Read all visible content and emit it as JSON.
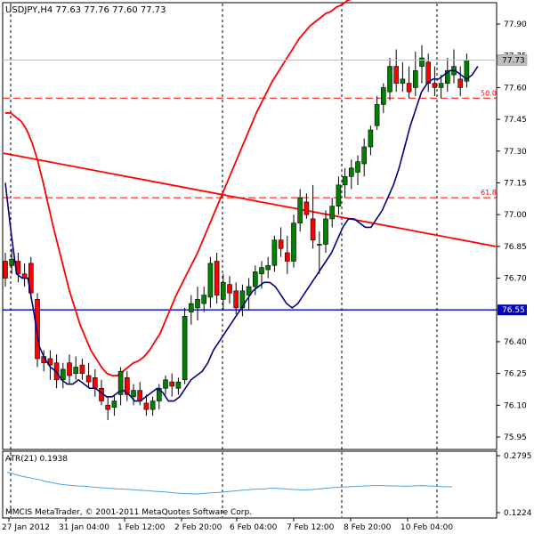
{
  "header": {
    "title": "USDJPY,H4  77.63 77.76 77.60 77.73"
  },
  "footer": {
    "copyright": "MMCIS MetaTrader, © 2001-2011 MetaQuotes Software Corp."
  },
  "chart_data": [
    {
      "type": "candlestick",
      "symbol": "USDJPY",
      "timeframe": "H4",
      "ohlc_label": "77.63 77.76 77.60 77.73",
      "ylim": [
        75.88,
        78.0
      ],
      "y_ticks": [
        "77.90",
        "77.75",
        "77.60",
        "77.45",
        "77.30",
        "77.15",
        "77.00",
        "76.85",
        "76.70",
        "76.55",
        "76.40",
        "76.25",
        "76.10",
        "75.95"
      ],
      "x_ticks": [
        "27 Jan 2012",
        "31 Jan 04:00",
        "1 Feb 12:00",
        "2 Feb 20:00",
        "6 Feb 04:00",
        "7 Feb 12:00",
        "8 Feb 20:00",
        "10 Feb 04:00"
      ],
      "current_price_label": "77.73",
      "colors": {
        "up": "#008000",
        "down": "#ff0000",
        "ma_fast": "#000080",
        "ma_slow": "#ff0000",
        "support": "#0000cc"
      },
      "candles": [
        {
          "o": 76.78,
          "h": 76.82,
          "l": 76.66,
          "c": 76.7
        },
        {
          "o": 76.76,
          "h": 76.84,
          "l": 76.72,
          "c": 76.79
        },
        {
          "o": 76.78,
          "h": 76.82,
          "l": 76.68,
          "c": 76.72
        },
        {
          "o": 76.72,
          "h": 76.77,
          "l": 76.66,
          "c": 76.7
        },
        {
          "o": 76.77,
          "h": 76.8,
          "l": 76.6,
          "c": 76.63
        },
        {
          "o": 76.6,
          "h": 76.63,
          "l": 76.28,
          "c": 76.32
        },
        {
          "o": 76.33,
          "h": 76.36,
          "l": 76.26,
          "c": 76.3
        },
        {
          "o": 76.32,
          "h": 76.36,
          "l": 76.22,
          "c": 76.29
        },
        {
          "o": 76.3,
          "h": 76.34,
          "l": 76.18,
          "c": 76.22
        },
        {
          "o": 76.22,
          "h": 76.3,
          "l": 76.18,
          "c": 76.27
        },
        {
          "o": 76.3,
          "h": 76.34,
          "l": 76.2,
          "c": 76.24
        },
        {
          "o": 76.25,
          "h": 76.33,
          "l": 76.22,
          "c": 76.28
        },
        {
          "o": 76.29,
          "h": 76.32,
          "l": 76.22,
          "c": 76.25
        },
        {
          "o": 76.24,
          "h": 76.3,
          "l": 76.18,
          "c": 76.21
        },
        {
          "o": 76.23,
          "h": 76.27,
          "l": 76.14,
          "c": 76.18
        },
        {
          "o": 76.18,
          "h": 76.22,
          "l": 76.1,
          "c": 76.12
        },
        {
          "o": 76.1,
          "h": 76.14,
          "l": 76.03,
          "c": 76.08
        },
        {
          "o": 76.09,
          "h": 76.15,
          "l": 76.05,
          "c": 76.12
        },
        {
          "o": 76.15,
          "h": 76.28,
          "l": 76.1,
          "c": 76.26
        },
        {
          "o": 76.23,
          "h": 76.26,
          "l": 76.12,
          "c": 76.15
        },
        {
          "o": 76.14,
          "h": 76.2,
          "l": 76.1,
          "c": 76.17
        },
        {
          "o": 76.17,
          "h": 76.21,
          "l": 76.1,
          "c": 76.12
        },
        {
          "o": 76.11,
          "h": 76.15,
          "l": 76.05,
          "c": 76.08
        },
        {
          "o": 76.08,
          "h": 76.14,
          "l": 76.05,
          "c": 76.12
        },
        {
          "o": 76.12,
          "h": 76.2,
          "l": 76.08,
          "c": 76.18
        },
        {
          "o": 76.18,
          "h": 76.24,
          "l": 76.15,
          "c": 76.22
        },
        {
          "o": 76.21,
          "h": 76.25,
          "l": 76.14,
          "c": 76.19
        },
        {
          "o": 76.18,
          "h": 76.23,
          "l": 76.15,
          "c": 76.21
        },
        {
          "o": 76.22,
          "h": 76.56,
          "l": 76.2,
          "c": 76.52
        },
        {
          "o": 76.54,
          "h": 76.62,
          "l": 76.48,
          "c": 76.58
        },
        {
          "o": 76.56,
          "h": 76.66,
          "l": 76.5,
          "c": 76.6
        },
        {
          "o": 76.58,
          "h": 76.66,
          "l": 76.54,
          "c": 76.62
        },
        {
          "o": 76.61,
          "h": 76.8,
          "l": 76.56,
          "c": 76.77
        },
        {
          "o": 76.78,
          "h": 76.82,
          "l": 76.58,
          "c": 76.62
        },
        {
          "o": 76.6,
          "h": 76.72,
          "l": 76.55,
          "c": 76.68
        },
        {
          "o": 76.67,
          "h": 76.71,
          "l": 76.58,
          "c": 76.63
        },
        {
          "o": 76.64,
          "h": 76.68,
          "l": 76.53,
          "c": 76.56
        },
        {
          "o": 76.56,
          "h": 76.67,
          "l": 76.52,
          "c": 76.64
        },
        {
          "o": 76.62,
          "h": 76.7,
          "l": 76.55,
          "c": 76.66
        },
        {
          "o": 76.66,
          "h": 76.76,
          "l": 76.62,
          "c": 76.73
        },
        {
          "o": 76.72,
          "h": 76.78,
          "l": 76.65,
          "c": 76.75
        },
        {
          "o": 76.74,
          "h": 76.8,
          "l": 76.7,
          "c": 76.76
        },
        {
          "o": 76.76,
          "h": 76.9,
          "l": 76.73,
          "c": 76.88
        },
        {
          "o": 76.88,
          "h": 76.94,
          "l": 76.8,
          "c": 76.84
        },
        {
          "o": 76.82,
          "h": 76.9,
          "l": 76.72,
          "c": 76.78
        },
        {
          "o": 76.78,
          "h": 77.0,
          "l": 76.75,
          "c": 76.96
        },
        {
          "o": 76.96,
          "h": 77.12,
          "l": 76.92,
          "c": 77.08
        },
        {
          "o": 77.06,
          "h": 77.1,
          "l": 76.98,
          "c": 77.0
        },
        {
          "o": 76.98,
          "h": 77.14,
          "l": 76.84,
          "c": 76.88
        },
        {
          "o": 76.86,
          "h": 76.92,
          "l": 76.72,
          "c": 76.86
        },
        {
          "o": 76.86,
          "h": 77.02,
          "l": 76.82,
          "c": 76.98
        },
        {
          "o": 76.98,
          "h": 77.08,
          "l": 76.94,
          "c": 77.04
        },
        {
          "o": 77.04,
          "h": 77.18,
          "l": 77.0,
          "c": 77.14
        },
        {
          "o": 77.14,
          "h": 77.22,
          "l": 77.08,
          "c": 77.18
        },
        {
          "o": 77.18,
          "h": 77.26,
          "l": 77.12,
          "c": 77.22
        },
        {
          "o": 77.2,
          "h": 77.28,
          "l": 77.14,
          "c": 77.25
        },
        {
          "o": 77.24,
          "h": 77.36,
          "l": 77.18,
          "c": 77.32
        },
        {
          "o": 77.32,
          "h": 77.42,
          "l": 77.28,
          "c": 77.4
        },
        {
          "o": 77.42,
          "h": 77.56,
          "l": 77.4,
          "c": 77.52
        },
        {
          "o": 77.52,
          "h": 77.62,
          "l": 77.48,
          "c": 77.6
        },
        {
          "o": 77.58,
          "h": 77.74,
          "l": 77.54,
          "c": 77.7
        },
        {
          "o": 77.7,
          "h": 77.78,
          "l": 77.58,
          "c": 77.62
        },
        {
          "o": 77.62,
          "h": 77.72,
          "l": 77.58,
          "c": 77.64
        },
        {
          "o": 77.62,
          "h": 77.7,
          "l": 77.55,
          "c": 77.58
        },
        {
          "o": 77.6,
          "h": 77.77,
          "l": 77.56,
          "c": 77.68
        },
        {
          "o": 77.7,
          "h": 77.8,
          "l": 77.62,
          "c": 77.74
        },
        {
          "o": 77.72,
          "h": 77.76,
          "l": 77.58,
          "c": 77.62
        },
        {
          "o": 77.62,
          "h": 77.7,
          "l": 77.56,
          "c": 77.6
        },
        {
          "o": 77.6,
          "h": 77.66,
          "l": 77.55,
          "c": 77.62
        },
        {
          "o": 77.62,
          "h": 77.74,
          "l": 77.58,
          "c": 77.68
        },
        {
          "o": 77.66,
          "h": 77.78,
          "l": 77.62,
          "c": 77.7
        },
        {
          "o": 77.64,
          "h": 77.7,
          "l": 77.56,
          "c": 77.6
        },
        {
          "o": 77.63,
          "h": 77.76,
          "l": 77.6,
          "c": 77.73
        }
      ],
      "ma_fast": [
        [
          0,
          77.15
        ],
        [
          4,
          76.92
        ],
        [
          8,
          76.72
        ],
        [
          12,
          76.7
        ],
        [
          16,
          76.7
        ],
        [
          20,
          76.55
        ],
        [
          24,
          76.38
        ],
        [
          28,
          76.32
        ],
        [
          32,
          76.28
        ],
        [
          36,
          76.26
        ],
        [
          40,
          76.22
        ],
        [
          44,
          76.2
        ],
        [
          48,
          76.2
        ],
        [
          52,
          76.22
        ],
        [
          56,
          76.2
        ],
        [
          60,
          76.18
        ],
        [
          64,
          76.18
        ],
        [
          68,
          76.16
        ],
        [
          72,
          76.14
        ],
        [
          76,
          76.14
        ],
        [
          80,
          76.16
        ],
        [
          84,
          76.17
        ],
        [
          88,
          76.15
        ],
        [
          92,
          76.12
        ],
        [
          96,
          76.12
        ],
        [
          100,
          76.14
        ],
        [
          104,
          76.16
        ],
        [
          108,
          76.18
        ],
        [
          112,
          76.16
        ],
        [
          116,
          76.12
        ],
        [
          120,
          76.12
        ],
        [
          124,
          76.14
        ],
        [
          128,
          76.18
        ],
        [
          132,
          76.22
        ],
        [
          136,
          76.24
        ],
        [
          140,
          76.26
        ],
        [
          144,
          76.3
        ],
        [
          148,
          76.36
        ],
        [
          152,
          76.4
        ],
        [
          156,
          76.44
        ],
        [
          160,
          76.48
        ],
        [
          164,
          76.52
        ],
        [
          168,
          76.56
        ],
        [
          172,
          76.6
        ],
        [
          176,
          76.64
        ],
        [
          180,
          76.66
        ],
        [
          184,
          76.68
        ],
        [
          188,
          76.68
        ],
        [
          192,
          76.66
        ],
        [
          196,
          76.62
        ],
        [
          200,
          76.58
        ],
        [
          204,
          76.56
        ],
        [
          208,
          76.58
        ],
        [
          212,
          76.62
        ],
        [
          216,
          76.66
        ],
        [
          220,
          76.7
        ],
        [
          224,
          76.74
        ],
        [
          228,
          76.78
        ],
        [
          232,
          76.82
        ],
        [
          236,
          76.88
        ],
        [
          240,
          76.94
        ],
        [
          244,
          76.98
        ],
        [
          248,
          76.98
        ],
        [
          252,
          76.96
        ],
        [
          256,
          76.94
        ],
        [
          260,
          76.94
        ],
        [
          264,
          76.98
        ],
        [
          268,
          77.02
        ],
        [
          272,
          77.08
        ],
        [
          276,
          77.14
        ],
        [
          280,
          77.22
        ],
        [
          284,
          77.32
        ],
        [
          288,
          77.42
        ],
        [
          292,
          77.5
        ],
        [
          296,
          77.58
        ],
        [
          300,
          77.62
        ],
        [
          304,
          77.64
        ],
        [
          308,
          77.64
        ],
        [
          312,
          77.66
        ],
        [
          316,
          77.68
        ],
        [
          320,
          77.68
        ],
        [
          324,
          77.66
        ],
        [
          328,
          77.64
        ],
        [
          332,
          77.66
        ],
        [
          336,
          77.7
        ]
      ],
      "ma_slow": [
        [
          0,
          77.48
        ],
        [
          6,
          77.48
        ],
        [
          12,
          77.46
        ],
        [
          18,
          77.44
        ],
        [
          24,
          77.4
        ],
        [
          30,
          77.34
        ],
        [
          36,
          77.26
        ],
        [
          42,
          77.16
        ],
        [
          48,
          77.05
        ],
        [
          54,
          76.94
        ],
        [
          60,
          76.84
        ],
        [
          66,
          76.74
        ],
        [
          72,
          76.64
        ],
        [
          78,
          76.56
        ],
        [
          84,
          76.48
        ],
        [
          90,
          76.42
        ],
        [
          96,
          76.36
        ],
        [
          102,
          76.32
        ],
        [
          108,
          76.28
        ],
        [
          114,
          76.25
        ],
        [
          120,
          76.24
        ],
        [
          126,
          76.24
        ],
        [
          132,
          76.26
        ],
        [
          138,
          76.28
        ],
        [
          144,
          76.3
        ],
        [
          150,
          76.31
        ],
        [
          156,
          76.33
        ],
        [
          162,
          76.36
        ],
        [
          168,
          76.4
        ],
        [
          174,
          76.44
        ],
        [
          180,
          76.5
        ],
        [
          186,
          76.56
        ],
        [
          192,
          76.62
        ],
        [
          198,
          76.67
        ],
        [
          204,
          76.72
        ],
        [
          210,
          76.77
        ],
        [
          216,
          76.82
        ],
        [
          222,
          76.88
        ],
        [
          228,
          76.94
        ],
        [
          234,
          77.0
        ],
        [
          240,
          77.06
        ],
        [
          246,
          77.12
        ],
        [
          252,
          77.18
        ],
        [
          258,
          77.24
        ],
        [
          264,
          77.3
        ],
        [
          270,
          77.36
        ],
        [
          276,
          77.42
        ],
        [
          282,
          77.48
        ],
        [
          288,
          77.53
        ],
        [
          294,
          77.58
        ],
        [
          300,
          77.63
        ],
        [
          306,
          77.67
        ],
        [
          312,
          77.71
        ],
        [
          318,
          77.75
        ],
        [
          324,
          77.79
        ],
        [
          330,
          77.83
        ],
        [
          336,
          77.86
        ],
        [
          342,
          77.89
        ],
        [
          348,
          77.91
        ],
        [
          354,
          77.93
        ],
        [
          360,
          77.95
        ],
        [
          366,
          77.96
        ],
        [
          372,
          77.98
        ],
        [
          378,
          77.99
        ],
        [
          384,
          78.01
        ],
        [
          390,
          78.02
        ],
        [
          396,
          78.03
        ],
        [
          402,
          78.04
        ],
        [
          408,
          78.05
        ],
        [
          414,
          78.06
        ],
        [
          420,
          78.07
        ],
        [
          426,
          78.07
        ],
        [
          432,
          78.08
        ],
        [
          438,
          78.08
        ],
        [
          444,
          78.09
        ],
        [
          450,
          78.09
        ],
        [
          456,
          78.1
        ],
        [
          462,
          78.1
        ],
        [
          468,
          78.1
        ],
        [
          474,
          78.1
        ],
        [
          480,
          78.1
        ],
        [
          486,
          78.1
        ],
        [
          492,
          78.1
        ],
        [
          498,
          78.1
        ],
        [
          504,
          78.1
        ],
        [
          510,
          78.1
        ],
        [
          516,
          78.1
        ],
        [
          522,
          78.1
        ],
        [
          528,
          78.1
        ],
        [
          534,
          78.1
        ],
        [
          540,
          78.1
        ]
      ],
      "trendline": {
        "from": [
          0,
          77.29
        ],
        "to": [
          560,
          76.85
        ]
      },
      "support_level": {
        "value": 76.55,
        "label": "76.55"
      },
      "fibo_levels": [
        {
          "value": 77.55,
          "label": "50.0"
        },
        {
          "value": 77.08,
          "label": "61.8"
        }
      ],
      "vertical_separators": [
        "27 Jan 2012",
        "2 Feb 20:00",
        "8 Feb 20:00",
        "10 Feb 04:00"
      ]
    },
    {
      "type": "line",
      "indicator": "ATR(21)",
      "label": "ATR(21) 0.1938",
      "y_ticks": [
        "0.2795",
        "0.1224"
      ],
      "ylim": [
        0.1224,
        0.2795
      ],
      "values": [
        0.234,
        0.228,
        0.222,
        0.218,
        0.214,
        0.208,
        0.204,
        0.2,
        0.198,
        0.196,
        0.195,
        0.193,
        0.191,
        0.19,
        0.188,
        0.187,
        0.186,
        0.184,
        0.183,
        0.181,
        0.18,
        0.178,
        0.176,
        0.175,
        0.174,
        0.175,
        0.177,
        0.178,
        0.18,
        0.182,
        0.184,
        0.186,
        0.187,
        0.188,
        0.19,
        0.189,
        0.187,
        0.186,
        0.185,
        0.186,
        0.188,
        0.19,
        0.192,
        0.193,
        0.194,
        0.195,
        0.196,
        0.197,
        0.197,
        0.196,
        0.196,
        0.195,
        0.196,
        0.197,
        0.196,
        0.195,
        0.194,
        0.1938
      ]
    }
  ]
}
